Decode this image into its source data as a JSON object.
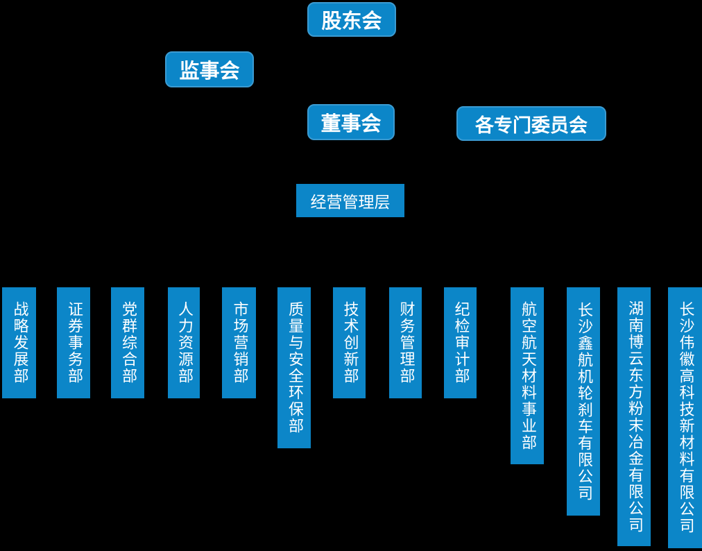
{
  "diagram": {
    "type": "org-chart",
    "colors": {
      "background": "#000000",
      "node_fill": "#0c86c8",
      "node_border": "#3b9bd2",
      "text": "#ffffff"
    },
    "governance": {
      "shareholders": "股东会",
      "supervisory_board": "监事会",
      "board_of_directors": "董事会",
      "special_committees": "各专门委员会",
      "management_layer": "经营管理层"
    },
    "departments": [
      "战略发展部",
      "证券事务部",
      "党群综合部",
      "人力资源部",
      "市场营销部",
      "质量与安全环保部",
      "技术创新部",
      "财务管理部",
      "纪检审计部",
      "航空航天材料事业部",
      "长沙鑫航机轮刹车有限公司",
      "湖南博云东方粉末冶金有限公司",
      "长沙伟徽高科技新材料有限公司"
    ]
  }
}
